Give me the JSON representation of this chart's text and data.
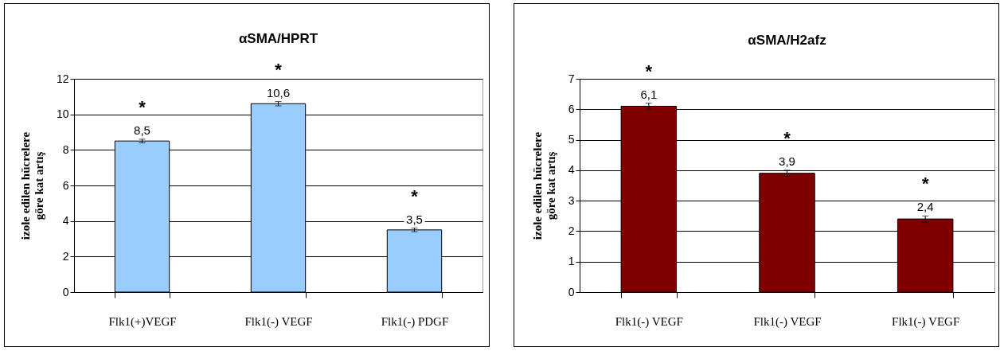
{
  "chart_data": [
    {
      "type": "bar",
      "title": "αSMA/HPRT",
      "ylabel": "izole edilen hücrelere\ngöre kat artış",
      "categories": [
        "Flk1(+)VEGF",
        "Flk1(-) VEGF",
        "Flk1(-) PDGF"
      ],
      "values": [
        8.5,
        10.6,
        3.5
      ],
      "errors": [
        0.1,
        0.12,
        0.1
      ],
      "value_labels": [
        "8,5",
        "10,6",
        "3,5"
      ],
      "color": "#99ccff",
      "ylim": [
        0,
        12
      ],
      "yticks": [
        0,
        2,
        4,
        6,
        8,
        10,
        12
      ],
      "grid": "y",
      "annotations": [
        "*",
        "*",
        "*"
      ]
    },
    {
      "type": "bar",
      "title": "αSMA/H2afz",
      "ylabel": "izole edilen hücrelere\ngöre kat artış",
      "categories": [
        "Flk1(-) VEGF",
        "Flk1(-) VEGF",
        "Flk1(-) VEGF"
      ],
      "values": [
        6.1,
        3.9,
        2.4
      ],
      "errors": [
        0.1,
        0.1,
        0.1
      ],
      "value_labels": [
        "6,1",
        "3,9",
        "2,4"
      ],
      "color": "#800000",
      "ylim": [
        0,
        7
      ],
      "yticks": [
        0,
        1,
        2,
        3,
        4,
        5,
        6,
        7
      ],
      "grid": "y",
      "annotations": [
        "*",
        "*",
        "*"
      ]
    }
  ]
}
